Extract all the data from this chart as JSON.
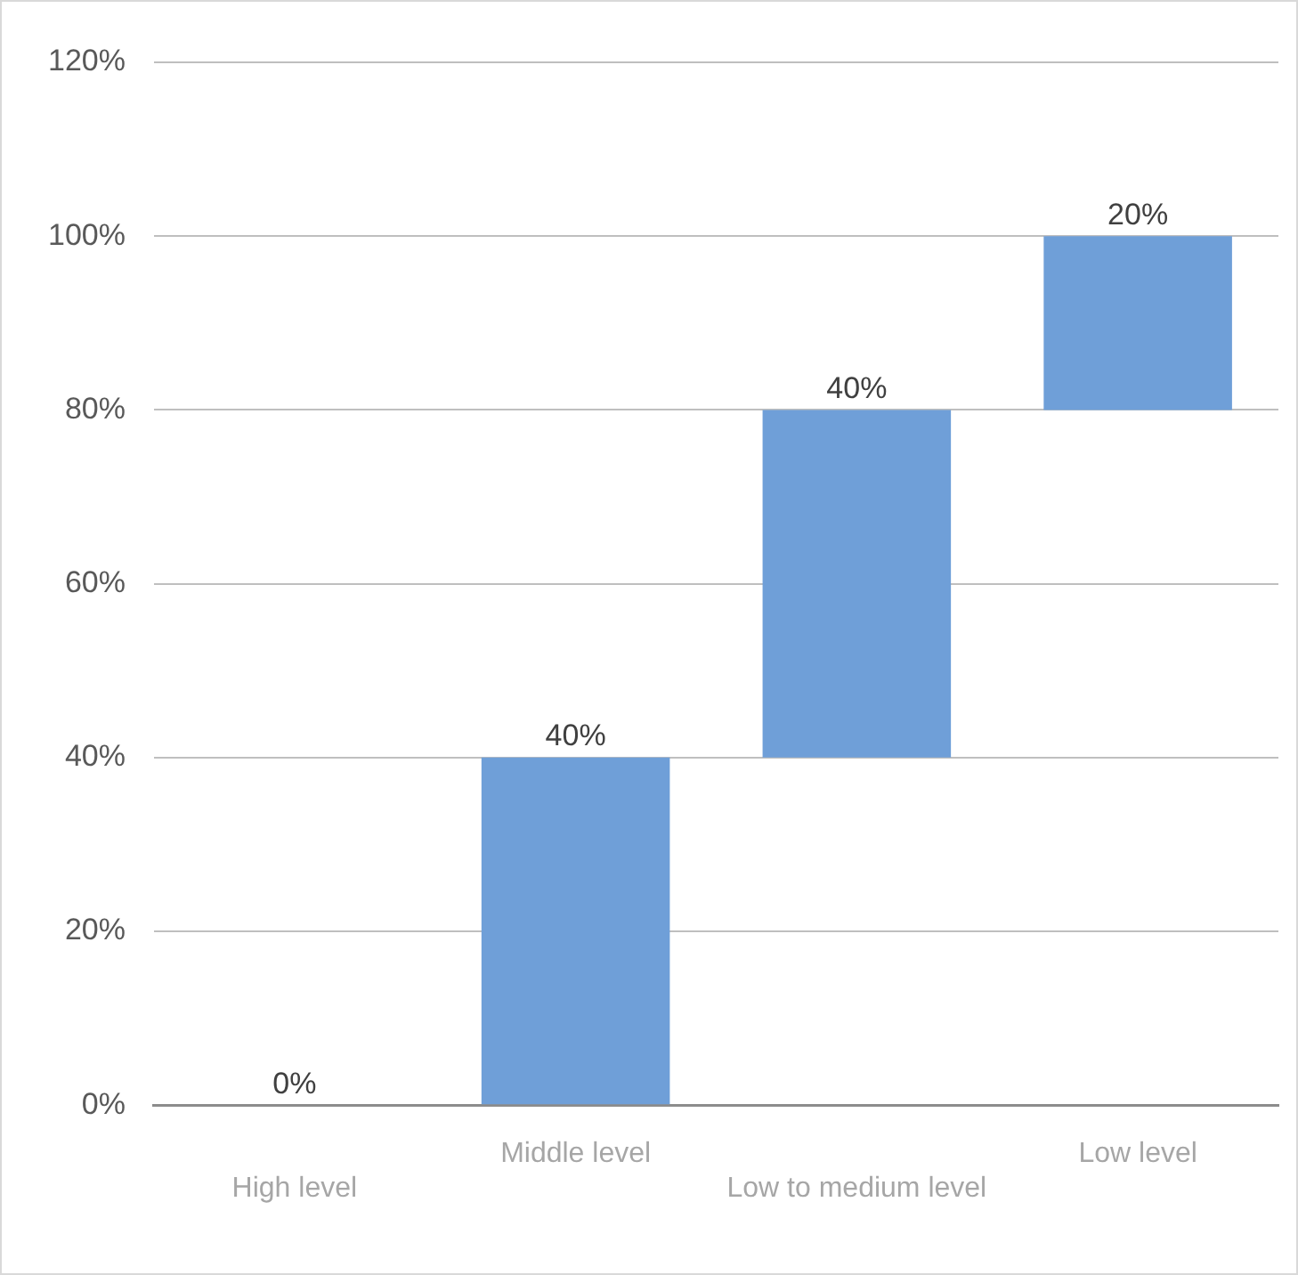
{
  "chart_data": {
    "type": "bar",
    "categories": [
      "High level",
      "Middle level",
      "Low to medium level",
      "Low level"
    ],
    "values": [
      0,
      40,
      40,
      20
    ],
    "base": [
      null,
      0,
      40,
      80
    ],
    "color": "#6f9fd8",
    "value_labels": [
      "0%",
      "40%",
      "40%",
      "20%"
    ],
    "ylim": [
      0,
      120
    ],
    "yticks": [
      {
        "value": 0,
        "label": "0%"
      },
      {
        "value": 20,
        "label": "20%"
      },
      {
        "value": 40,
        "label": "40%"
      },
      {
        "value": 60,
        "label": "60%"
      },
      {
        "value": 80,
        "label": "80%"
      },
      {
        "value": 100,
        "label": "100%"
      },
      {
        "value": 120,
        "label": "120%"
      }
    ],
    "grid": "y",
    "legend": false
  }
}
